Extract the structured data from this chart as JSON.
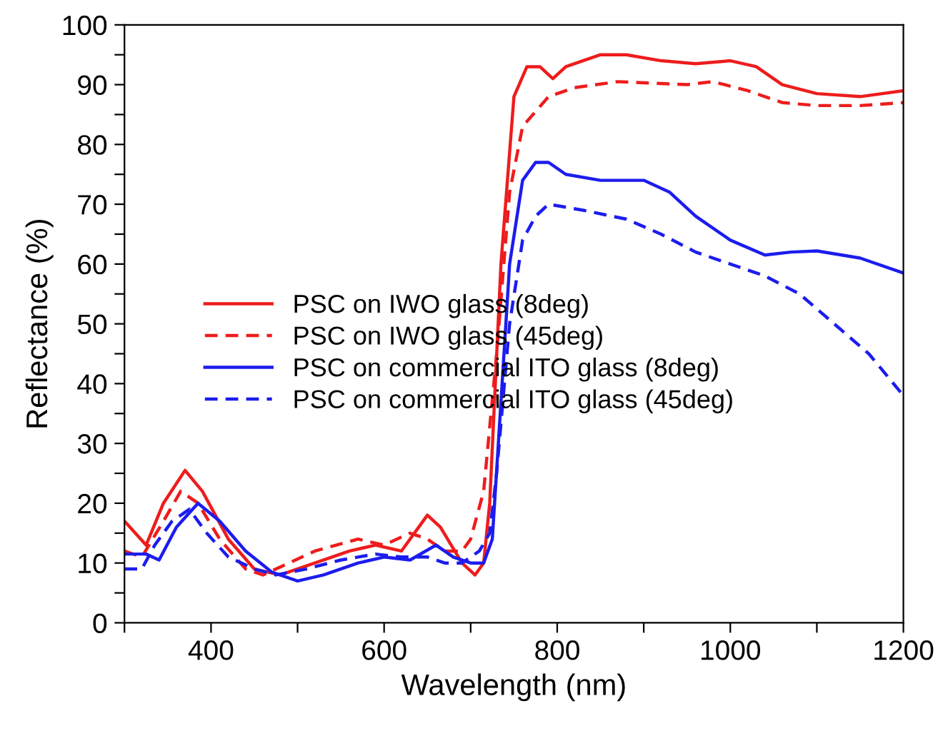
{
  "chart_data": {
    "type": "line",
    "xlabel": "Wavelength (nm)",
    "ylabel": "Reflectance (%)",
    "xlim": [
      300,
      1200
    ],
    "ylim": [
      0,
      100
    ],
    "xticks": [
      {
        "value": 300,
        "label": null
      },
      400,
      {
        "value": 500,
        "label": null
      },
      600,
      {
        "value": 700,
        "label": null
      },
      800,
      {
        "value": 900,
        "label": null
      },
      1000,
      {
        "value": 1100,
        "label": null
      },
      1200
    ],
    "yticks": [
      0,
      {
        "value": 5,
        "label": null
      },
      10,
      {
        "value": 15,
        "label": null
      },
      20,
      {
        "value": 25,
        "label": null
      },
      30,
      {
        "value": 35,
        "label": null
      },
      40,
      {
        "value": 45,
        "label": null
      },
      50,
      {
        "value": 55,
        "label": null
      },
      60,
      {
        "value": 65,
        "label": null
      },
      70,
      {
        "value": 75,
        "label": null
      },
      80,
      {
        "value": 85,
        "label": null
      },
      90,
      {
        "value": 95,
        "label": null
      },
      100
    ],
    "grid": false,
    "legend": "center left",
    "marker": "none",
    "series": [
      {
        "name": "PSC on IWO glass (8deg)",
        "color": "#ee1c1c",
        "line_style": "solid",
        "x": [
          300,
          325,
          345,
          370,
          390,
          420,
          450,
          480,
          520,
          560,
          590,
          620,
          650,
          665,
          690,
          705,
          715,
          722,
          735,
          750,
          765,
          780,
          795,
          810,
          850,
          880,
          920,
          960,
          1000,
          1030,
          1060,
          1100,
          1150,
          1200
        ],
        "values": [
          17,
          13,
          20,
          25.5,
          22,
          14,
          9,
          8,
          10,
          12,
          13,
          12,
          18,
          16,
          10,
          8,
          10,
          20,
          60,
          88,
          93,
          93,
          91,
          93,
          95,
          95,
          94,
          93.5,
          94,
          93,
          90,
          88.5,
          88,
          89
        ]
      },
      {
        "name": "PSC on IWO glass (45deg)",
        "color": "#ee1c1c",
        "line_style": "dashed",
        "x": [
          300,
          320,
          345,
          365,
          385,
          410,
          440,
          460,
          490,
          520,
          570,
          600,
          630,
          650,
          670,
          690,
          700,
          715,
          730,
          745,
          760,
          790,
          820,
          870,
          950,
          980,
          1020,
          1060,
          1100,
          1150,
          1200
        ],
        "values": [
          12,
          11,
          17,
          22,
          20,
          14,
          9,
          8,
          10,
          12,
          14,
          13,
          15,
          14,
          12,
          12,
          14,
          22,
          45,
          72,
          83,
          88,
          89.5,
          90.5,
          90,
          90.5,
          89,
          87,
          86.5,
          86.5,
          87
        ]
      },
      {
        "name": "PSC on commercial ITO glass (8deg)",
        "color": "#1c1cee",
        "line_style": "solid",
        "x": [
          300,
          325,
          340,
          360,
          385,
          410,
          440,
          470,
          500,
          530,
          570,
          600,
          630,
          660,
          680,
          700,
          715,
          725,
          732,
          745,
          760,
          775,
          790,
          810,
          850,
          900,
          930,
          960,
          1000,
          1040,
          1070,
          1100,
          1150,
          1200
        ],
        "values": [
          11.5,
          11.5,
          10.5,
          16,
          20,
          17,
          12,
          8.5,
          7,
          8,
          10,
          11,
          10.5,
          13,
          11,
          10,
          10,
          14,
          30,
          60,
          74,
          77,
          77,
          75,
          74,
          74,
          72,
          68,
          64,
          61.5,
          62,
          62.2,
          61,
          58.5
        ]
      },
      {
        "name": "PSC on commercial ITO glass (45deg)",
        "color": "#1c1cee",
        "line_style": "dashed",
        "x": [
          300,
          320,
          335,
          355,
          375,
          395,
          420,
          450,
          475,
          510,
          550,
          590,
          620,
          650,
          670,
          690,
          710,
          722,
          730,
          745,
          760,
          775,
          790,
          830,
          880,
          920,
          960,
          1000,
          1040,
          1080,
          1120,
          1160,
          1200
        ],
        "values": [
          9,
          9,
          13,
          17,
          19,
          15,
          11,
          9,
          8,
          9,
          10.5,
          11.5,
          11,
          11,
          10,
          10,
          12,
          15,
          25,
          50,
          64,
          68,
          70,
          69,
          67.5,
          65,
          62,
          60,
          58,
          55,
          50,
          45,
          38
        ]
      }
    ]
  }
}
